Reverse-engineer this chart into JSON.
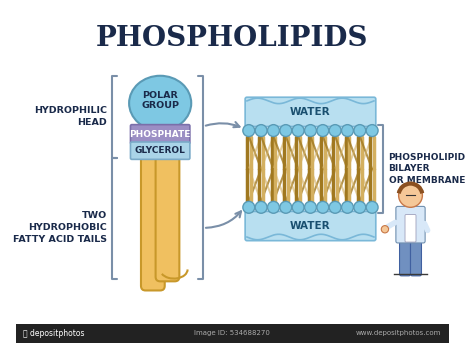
{
  "title": "PHOSPHOLIPIDS",
  "title_fontsize": 20,
  "title_fontweight": "bold",
  "bg_color": "#ffffff",
  "head_label": "HYDROPHILIC\nHEAD",
  "tail_label": "TWO\nHYDROPHOBIC\nFATTY ACID TAILS",
  "bilayer_label": "PHOSPHOLIPID\nBILAYER\nOR MEMBRANE",
  "water_label": "WATER",
  "polar_group_label": "POLAR\nGROUP",
  "phosphate_label": "PHOSPHATE",
  "glycerol_label": "GLYCEROL",
  "polar_group_color": "#7ec8e3",
  "polar_group_outline": "#5a9ab5",
  "phosphate_color": "#9b8ec4",
  "phosphate_outline": "#7a6faa",
  "glycerol_color": "#aad4e8",
  "glycerol_outline": "#7aaac8",
  "tail_color": "#f0c060",
  "tail_outline": "#c8982a",
  "water_color": "#b8dff0",
  "water_wave_color": "#7ab8d8",
  "head_circle_color": "#7ec8e3",
  "head_circle_outline": "#5a9ab5",
  "membrane_tail_color_light": "#d4b060",
  "membrane_tail_color_dark": "#a07820",
  "bracket_color": "#7a8fa8",
  "arrow_color": "#7a8fa8",
  "label_color": "#1a2a4a",
  "label_fontsize": 7,
  "title_color": "#1a2a4a"
}
